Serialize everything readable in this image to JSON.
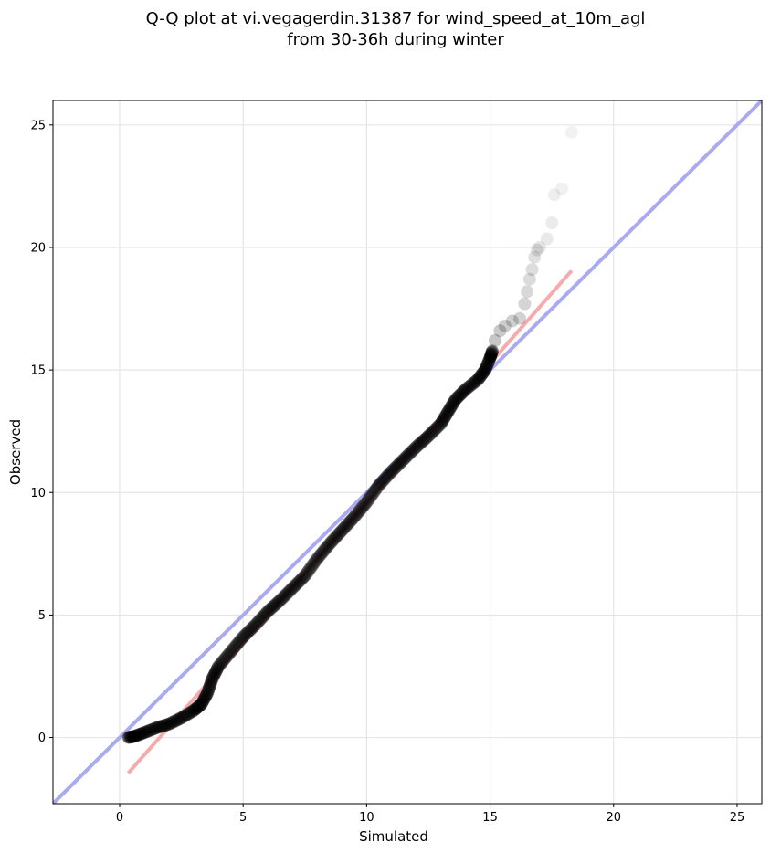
{
  "chart_data": {
    "type": "scatter",
    "title_lines": [
      "Q-Q plot at vi.vegagerdin.31387 for wind_speed_at_10m_agl",
      "from 30-36h during winter"
    ],
    "xlabel": "Simulated",
    "ylabel": "Observed",
    "xlim": [
      -2.7,
      26.0
    ],
    "ylim": [
      -2.7,
      26.0
    ],
    "x_ticks": [
      0,
      5,
      10,
      15,
      20,
      25
    ],
    "y_ticks": [
      0,
      5,
      10,
      15,
      20,
      25
    ],
    "grid": true,
    "colors": {
      "points": "#000000",
      "identity_line": "#aaaaf0",
      "fit_line": "#f4a6a6",
      "grid": "#e6e6e6"
    },
    "identity_line": {
      "from": [
        -2.7,
        -2.7
      ],
      "to": [
        26.0,
        26.0
      ]
    },
    "fit_line": {
      "from": [
        0.35,
        -1.45
      ],
      "to": [
        18.3,
        19.05
      ]
    },
    "curve_points": [
      [
        0.35,
        0.0
      ],
      [
        0.6,
        0.05
      ],
      [
        1.0,
        0.2
      ],
      [
        1.5,
        0.4
      ],
      [
        2.0,
        0.55
      ],
      [
        2.5,
        0.8
      ],
      [
        3.0,
        1.1
      ],
      [
        3.3,
        1.35
      ],
      [
        3.55,
        1.8
      ],
      [
        3.75,
        2.4
      ],
      [
        4.0,
        2.9
      ],
      [
        4.5,
        3.5
      ],
      [
        5.0,
        4.1
      ],
      [
        5.5,
        4.6
      ],
      [
        6.0,
        5.15
      ],
      [
        6.5,
        5.6
      ],
      [
        7.0,
        6.1
      ],
      [
        7.5,
        6.6
      ],
      [
        8.0,
        7.3
      ],
      [
        8.5,
        7.9
      ],
      [
        9.0,
        8.45
      ],
      [
        9.5,
        9.0
      ],
      [
        10.0,
        9.6
      ],
      [
        10.5,
        10.3
      ],
      [
        11.0,
        10.85
      ],
      [
        11.5,
        11.35
      ],
      [
        12.0,
        11.85
      ],
      [
        12.5,
        12.3
      ],
      [
        13.0,
        12.8
      ],
      [
        13.3,
        13.3
      ],
      [
        13.6,
        13.8
      ],
      [
        14.0,
        14.2
      ],
      [
        14.5,
        14.6
      ],
      [
        14.8,
        15.0
      ],
      [
        15.0,
        15.5
      ],
      [
        15.1,
        15.8
      ]
    ],
    "tail_points": [
      [
        15.2,
        16.2
      ],
      [
        15.4,
        16.6
      ],
      [
        15.6,
        16.8
      ],
      [
        15.9,
        17.0
      ],
      [
        16.2,
        17.1
      ],
      [
        16.4,
        17.7
      ],
      [
        16.5,
        18.2
      ],
      [
        16.6,
        18.7
      ],
      [
        16.7,
        19.1
      ],
      [
        16.8,
        19.6
      ],
      [
        16.9,
        19.9
      ],
      [
        17.0,
        20.0
      ],
      [
        17.3,
        20.35
      ],
      [
        17.5,
        21.0
      ],
      [
        17.6,
        22.15
      ],
      [
        17.9,
        22.4
      ],
      [
        18.3,
        24.7
      ]
    ]
  }
}
